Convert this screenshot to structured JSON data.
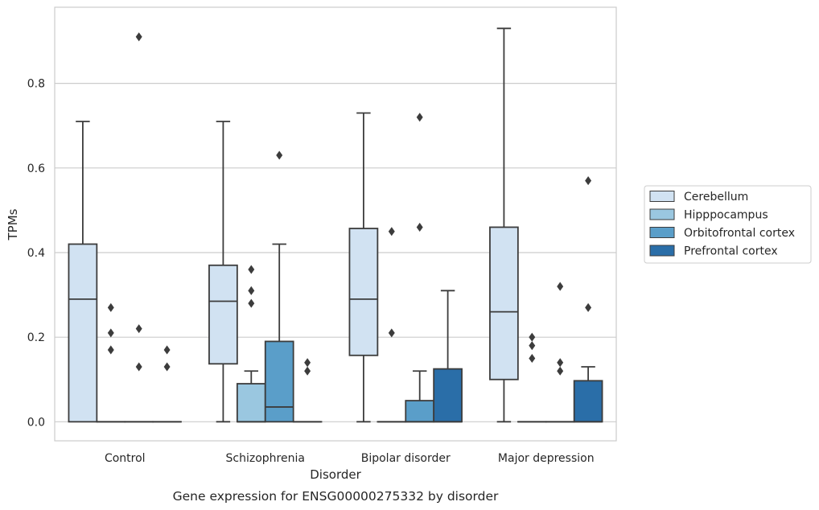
{
  "chart_data": {
    "type": "box",
    "xlabel": "Disorder",
    "ylabel": "TPMs",
    "caption": "Gene expression for ENSG00000275332 by disorder",
    "categories": [
      "Control",
      "Schizophrenia",
      "Bipolar disorder",
      "Major depression"
    ],
    "ylim": [
      -0.045,
      0.98
    ],
    "yticks": [
      {
        "value": 0.0,
        "label": "0.0"
      },
      {
        "value": 0.2,
        "label": "0.2"
      },
      {
        "value": 0.4,
        "label": "0.4"
      },
      {
        "value": 0.6,
        "label": "0.6"
      },
      {
        "value": 0.8,
        "label": "0.8"
      }
    ],
    "grid": "horizontal",
    "legend": {
      "placement": "right",
      "entries": [
        "Cerebellum",
        "Hipppocampus",
        "Orbitofrontal cortex",
        "Prefrontal cortex"
      ]
    },
    "series": [
      {
        "name": "Cerebellum",
        "color": "#d1e2f2",
        "boxes": [
          {
            "min": 0.0,
            "q1": 0.0,
            "median": 0.29,
            "q3": 0.42,
            "max": 0.71,
            "outliers": []
          },
          {
            "min": 0.0,
            "q1": 0.137,
            "median": 0.285,
            "q3": 0.37,
            "max": 0.71,
            "outliers": []
          },
          {
            "min": 0.0,
            "q1": 0.157,
            "median": 0.29,
            "q3": 0.457,
            "max": 0.73,
            "outliers": []
          },
          {
            "min": 0.0,
            "q1": 0.1,
            "median": 0.26,
            "q3": 0.46,
            "max": 0.93,
            "outliers": []
          }
        ]
      },
      {
        "name": "Hipppocampus",
        "color": "#9ac7e0",
        "boxes": [
          {
            "min": 0.0,
            "q1": 0.0,
            "median": 0.0,
            "q3": 0.0,
            "max": 0.0,
            "outliers": [
              0.27,
              0.21,
              0.17
            ]
          },
          {
            "min": 0.0,
            "q1": 0.0,
            "median": 0.0,
            "q3": 0.09,
            "max": 0.12,
            "outliers": [
              0.36,
              0.31,
              0.28
            ]
          },
          {
            "min": 0.0,
            "q1": 0.0,
            "median": 0.0,
            "q3": 0.0,
            "max": 0.0,
            "outliers": [
              0.45,
              0.21
            ]
          },
          {
            "min": 0.0,
            "q1": 0.0,
            "median": 0.0,
            "q3": 0.0,
            "max": 0.0,
            "outliers": [
              0.2,
              0.18,
              0.15
            ]
          }
        ]
      },
      {
        "name": "Orbitofrontal cortex",
        "color": "#5a9ec9",
        "boxes": [
          {
            "min": 0.0,
            "q1": 0.0,
            "median": 0.0,
            "q3": 0.0,
            "max": 0.0,
            "outliers": [
              0.91,
              0.22,
              0.13
            ]
          },
          {
            "min": 0.0,
            "q1": 0.0,
            "median": 0.035,
            "q3": 0.19,
            "max": 0.42,
            "outliers": [
              0.63
            ]
          },
          {
            "min": 0.0,
            "q1": 0.0,
            "median": 0.0,
            "q3": 0.05,
            "max": 0.12,
            "outliers": [
              0.72,
              0.46
            ]
          },
          {
            "min": 0.0,
            "q1": 0.0,
            "median": 0.0,
            "q3": 0.0,
            "max": 0.0,
            "outliers": [
              0.32,
              0.14,
              0.12
            ]
          }
        ]
      },
      {
        "name": "Prefrontal cortex",
        "color": "#2a6ea8",
        "boxes": [
          {
            "min": 0.0,
            "q1": 0.0,
            "median": 0.0,
            "q3": 0.0,
            "max": 0.0,
            "outliers": [
              0.17,
              0.13
            ]
          },
          {
            "min": 0.0,
            "q1": 0.0,
            "median": 0.0,
            "q3": 0.0,
            "max": 0.0,
            "outliers": [
              0.14,
              0.12
            ]
          },
          {
            "min": 0.0,
            "q1": 0.0,
            "median": 0.0,
            "q3": 0.125,
            "max": 0.31,
            "outliers": []
          },
          {
            "min": 0.0,
            "q1": 0.0,
            "median": 0.0,
            "q3": 0.097,
            "max": 0.13,
            "outliers": [
              0.57,
              0.27
            ]
          }
        ]
      }
    ]
  }
}
